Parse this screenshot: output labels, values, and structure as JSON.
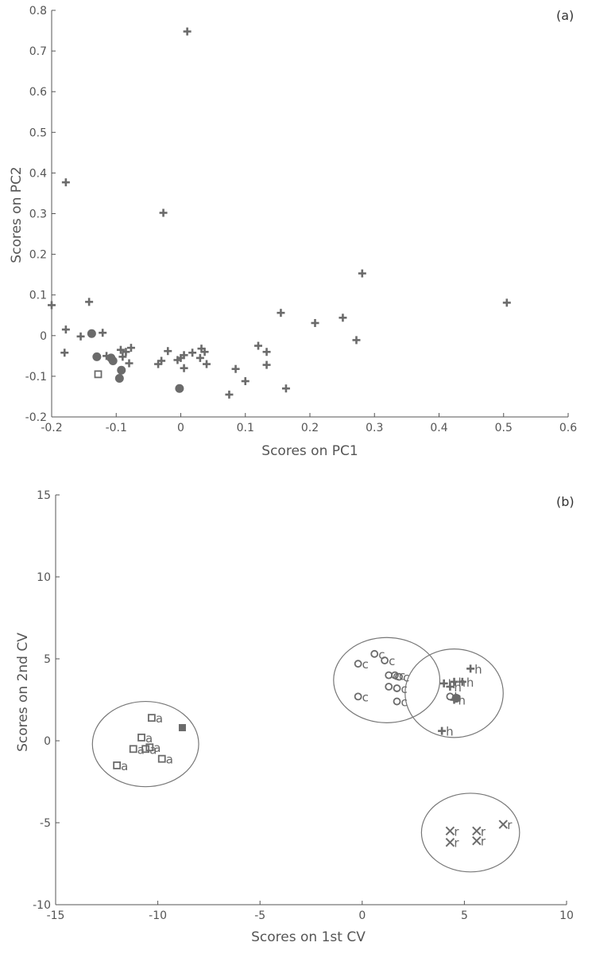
{
  "chart_data": [
    {
      "type": "scatter",
      "panel_label": "(a)",
      "xlabel": "Scores on PC1",
      "ylabel": "Scores on PC2",
      "xlim": [
        -0.2,
        0.6
      ],
      "ylim": [
        -0.2,
        0.8
      ],
      "xticks": [
        "-0.2",
        "-0.1",
        "0",
        "0.1",
        "0.2",
        "0.3",
        "0.4",
        "0.5",
        "0.6"
      ],
      "yticks": [
        "-0.2",
        "-0.1",
        "0",
        "0.1",
        "0.2",
        "0.3",
        "0.4",
        "0.5",
        "0.6",
        "0.7",
        "0.8"
      ],
      "series": [
        {
          "name": "plus",
          "marker": "plus",
          "points": [
            [
              0.01,
              0.748
            ],
            [
              -0.178,
              0.377
            ],
            [
              -0.027,
              0.302
            ],
            [
              0.281,
              0.153
            ],
            [
              0.505,
              0.081
            ],
            [
              -0.2,
              0.075
            ],
            [
              -0.142,
              0.083
            ],
            [
              -0.178,
              0.015
            ],
            [
              -0.155,
              -0.002
            ],
            [
              -0.121,
              0.007
            ],
            [
              0.155,
              0.056
            ],
            [
              0.208,
              0.031
            ],
            [
              0.251,
              0.044
            ],
            [
              0.272,
              -0.011
            ],
            [
              -0.18,
              -0.042
            ],
            [
              -0.115,
              -0.05
            ],
            [
              -0.093,
              -0.035
            ],
            [
              -0.09,
              -0.052
            ],
            [
              -0.085,
              -0.04
            ],
            [
              -0.077,
              -0.03
            ],
            [
              -0.08,
              -0.068
            ],
            [
              -0.035,
              -0.07
            ],
            [
              -0.03,
              -0.062
            ],
            [
              -0.02,
              -0.038
            ],
            [
              -0.005,
              -0.06
            ],
            [
              0.0,
              -0.055
            ],
            [
              0.005,
              -0.08
            ],
            [
              0.005,
              -0.048
            ],
            [
              0.018,
              -0.042
            ],
            [
              0.032,
              -0.032
            ],
            [
              0.03,
              -0.055
            ],
            [
              0.037,
              -0.04
            ],
            [
              0.04,
              -0.07
            ],
            [
              0.12,
              -0.025
            ],
            [
              0.133,
              -0.04
            ],
            [
              0.133,
              -0.072
            ],
            [
              0.163,
              -0.13
            ],
            [
              0.085,
              -0.082
            ],
            [
              0.1,
              -0.112
            ],
            [
              0.075,
              -0.145
            ]
          ]
        },
        {
          "name": "filled-circle",
          "marker": "circle",
          "points": [
            [
              -0.138,
              0.005
            ],
            [
              -0.13,
              -0.052
            ],
            [
              -0.108,
              -0.055
            ],
            [
              -0.105,
              -0.062
            ],
            [
              -0.092,
              -0.085
            ],
            [
              -0.095,
              -0.105
            ],
            [
              -0.002,
              -0.13
            ]
          ]
        },
        {
          "name": "open-square",
          "marker": "square",
          "points": [
            [
              -0.128,
              -0.095
            ]
          ]
        }
      ]
    },
    {
      "type": "scatter",
      "panel_label": "(b)",
      "xlabel": "Scores on 1st CV",
      "ylabel": "Scores on 2nd CV",
      "xlim": [
        -15,
        10
      ],
      "ylim": [
        -10,
        15
      ],
      "xticks": [
        "-15",
        "-10",
        "-5",
        "0",
        "5",
        "10"
      ],
      "yticks": [
        "-10",
        "-5",
        "0",
        "5",
        "10",
        "15"
      ],
      "series": [
        {
          "name": "a",
          "marker": "square",
          "label": "a",
          "points": [
            [
              -10.3,
              1.4
            ],
            [
              -10.8,
              0.2
            ],
            [
              -11.2,
              -0.5
            ],
            [
              -10.6,
              -0.5
            ],
            [
              -10.4,
              -0.4
            ],
            [
              -9.8,
              -1.1
            ],
            [
              -12.0,
              -1.5
            ]
          ]
        },
        {
          "name": "a-filled",
          "marker": "filled-square",
          "points": [
            [
              -8.8,
              0.8
            ]
          ]
        },
        {
          "name": "c",
          "marker": "open-circle",
          "label": "c",
          "points": [
            [
              0.6,
              5.3
            ],
            [
              -0.2,
              4.7
            ],
            [
              1.1,
              4.9
            ],
            [
              1.3,
              4.0
            ],
            [
              1.8,
              3.9
            ],
            [
              1.6,
              4.0
            ],
            [
              1.3,
              3.3
            ],
            [
              1.7,
              3.2
            ],
            [
              -0.2,
              2.7
            ],
            [
              1.7,
              2.4
            ]
          ]
        },
        {
          "name": "h",
          "marker": "plus",
          "label": "h",
          "points": [
            [
              5.3,
              4.4
            ],
            [
              4.5,
              3.6
            ],
            [
              4.9,
              3.6
            ],
            [
              4.0,
              3.5
            ],
            [
              4.3,
              3.3
            ],
            [
              4.5,
              2.5
            ],
            [
              3.9,
              0.6
            ]
          ]
        },
        {
          "name": "h-circle",
          "marker": "open-circle",
          "label": "h",
          "points": [
            [
              4.3,
              2.7
            ]
          ]
        },
        {
          "name": "h-filled",
          "marker": "circle",
          "points": [
            [
              4.6,
              2.6
            ]
          ]
        },
        {
          "name": "r",
          "marker": "x",
          "label": "r",
          "points": [
            [
              6.9,
              -5.1
            ],
            [
              5.6,
              -5.5
            ],
            [
              4.3,
              -5.5
            ],
            [
              4.3,
              -6.2
            ],
            [
              5.6,
              -6.1
            ]
          ]
        }
      ],
      "ellipses": [
        {
          "name": "group-a",
          "cx": -10.6,
          "cy": -0.2,
          "rx": 2.6,
          "ry": 2.6
        },
        {
          "name": "group-c",
          "cx": 1.2,
          "cy": 3.7,
          "rx": 2.6,
          "ry": 2.6
        },
        {
          "name": "group-h",
          "cx": 4.5,
          "cy": 2.9,
          "rx": 2.4,
          "ry": 2.7
        },
        {
          "name": "group-r",
          "cx": 5.3,
          "cy": -5.6,
          "rx": 2.4,
          "ry": 2.4
        }
      ]
    }
  ],
  "colors": {
    "axis": "#555555",
    "marker": "#6b6b6b",
    "ellipse": "#777777"
  }
}
